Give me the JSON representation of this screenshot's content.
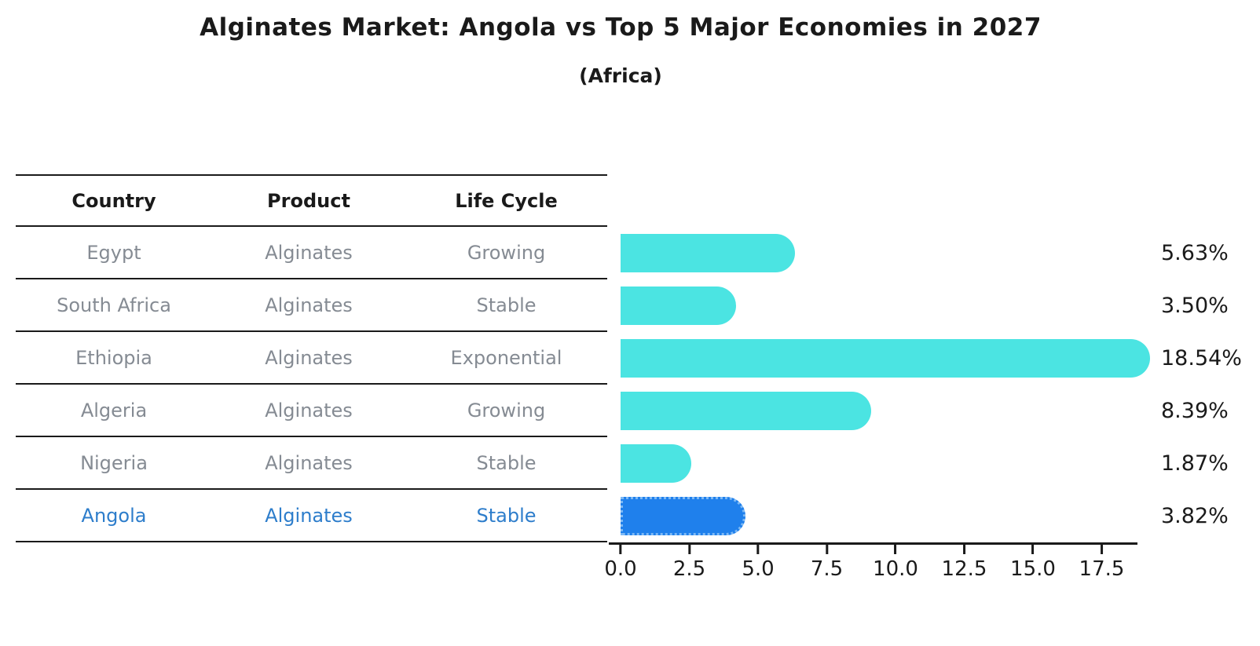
{
  "title": "Alginates Market: Angola vs Top 5 Major Economies in 2027",
  "subtitle": "(Africa)",
  "table": {
    "headers": [
      "Country",
      "Product",
      "Life Cycle"
    ],
    "rows": [
      {
        "country": "Egypt",
        "product": "Alginates",
        "life_cycle": "Growing",
        "highlight": false
      },
      {
        "country": "South Africa",
        "product": "Alginates",
        "life_cycle": "Stable",
        "highlight": false
      },
      {
        "country": "Ethiopia",
        "product": "Alginates",
        "life_cycle": "Exponential",
        "highlight": false
      },
      {
        "country": "Algeria",
        "product": "Alginates",
        "life_cycle": "Growing",
        "highlight": false
      },
      {
        "country": "Nigeria",
        "product": "Alginates",
        "life_cycle": "Stable",
        "highlight": false
      },
      {
        "country": "Angola",
        "product": "Alginates",
        "life_cycle": "Stable",
        "highlight": true
      }
    ]
  },
  "chart_data": {
    "type": "bar",
    "orientation": "horizontal",
    "title": "Alginates Market: Angola vs Top 5 Major Economies in 2027",
    "subtitle": "(Africa)",
    "categories": [
      "Egypt",
      "South Africa",
      "Ethiopia",
      "Algeria",
      "Nigeria",
      "Angola"
    ],
    "values": [
      5.63,
      3.5,
      18.54,
      8.39,
      1.87,
      3.82
    ],
    "value_labels": [
      "5.63%",
      "3.50%",
      "18.54%",
      "8.39%",
      "1.87%",
      "3.82%"
    ],
    "x_ticks": [
      "0.0",
      "2.5",
      "5.0",
      "7.5",
      "10.0",
      "12.5",
      "15.0",
      "17.5"
    ],
    "xlim": [
      0,
      18.8
    ],
    "highlight_index": 5,
    "grid": false,
    "legend": "none"
  },
  "colors": {
    "bar": "#4be4e2",
    "highlight-bar": "#1f80ec",
    "highlight-bar-edge": "#7db9f5",
    "row-text": "#858b93",
    "highlight-text": "#2d7dcb",
    "ink": "#1a1a1a",
    "background": "#ffffff"
  }
}
